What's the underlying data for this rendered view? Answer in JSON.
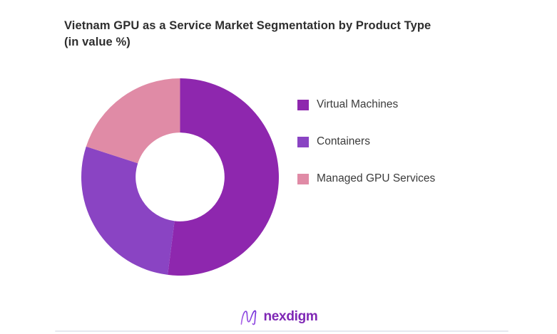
{
  "title": {
    "line1": "Vietnam GPU as a Service Market Segmentation by Product Type",
    "line2": "(in value %)"
  },
  "chart_data": {
    "type": "pie",
    "subtype": "donut",
    "title": "Vietnam GPU as a Service Market Segmentation by Product Type (in value %)",
    "unit": "%",
    "start_angle_deg": 0,
    "direction": "clockwise",
    "inner_radius_ratio": 0.45,
    "legend_position": "right",
    "data_labels_visible": false,
    "segments": [
      {
        "id": "virtual-machines",
        "label": "Virtual Machines",
        "value": 52,
        "color": "#8e27ae"
      },
      {
        "id": "containers",
        "label": "Containers",
        "value": 28,
        "color": "#8a44c3"
      },
      {
        "id": "managed-gpu-services",
        "label": "Managed GPU Services",
        "value": 20,
        "color": "#e08ba6"
      }
    ]
  },
  "footer": {
    "brand": "nexdigm",
    "divider_color": "#e6e8f0"
  },
  "colors": {
    "background": "#ffffff",
    "title_text": "#2e2e2e",
    "legend_text": "#3b3b3b",
    "hole": "#ffffff",
    "logo_purple": "#7f27b5",
    "logo_gradient_start": "#b06ae8",
    "logo_gradient_end": "#6d28d9"
  }
}
